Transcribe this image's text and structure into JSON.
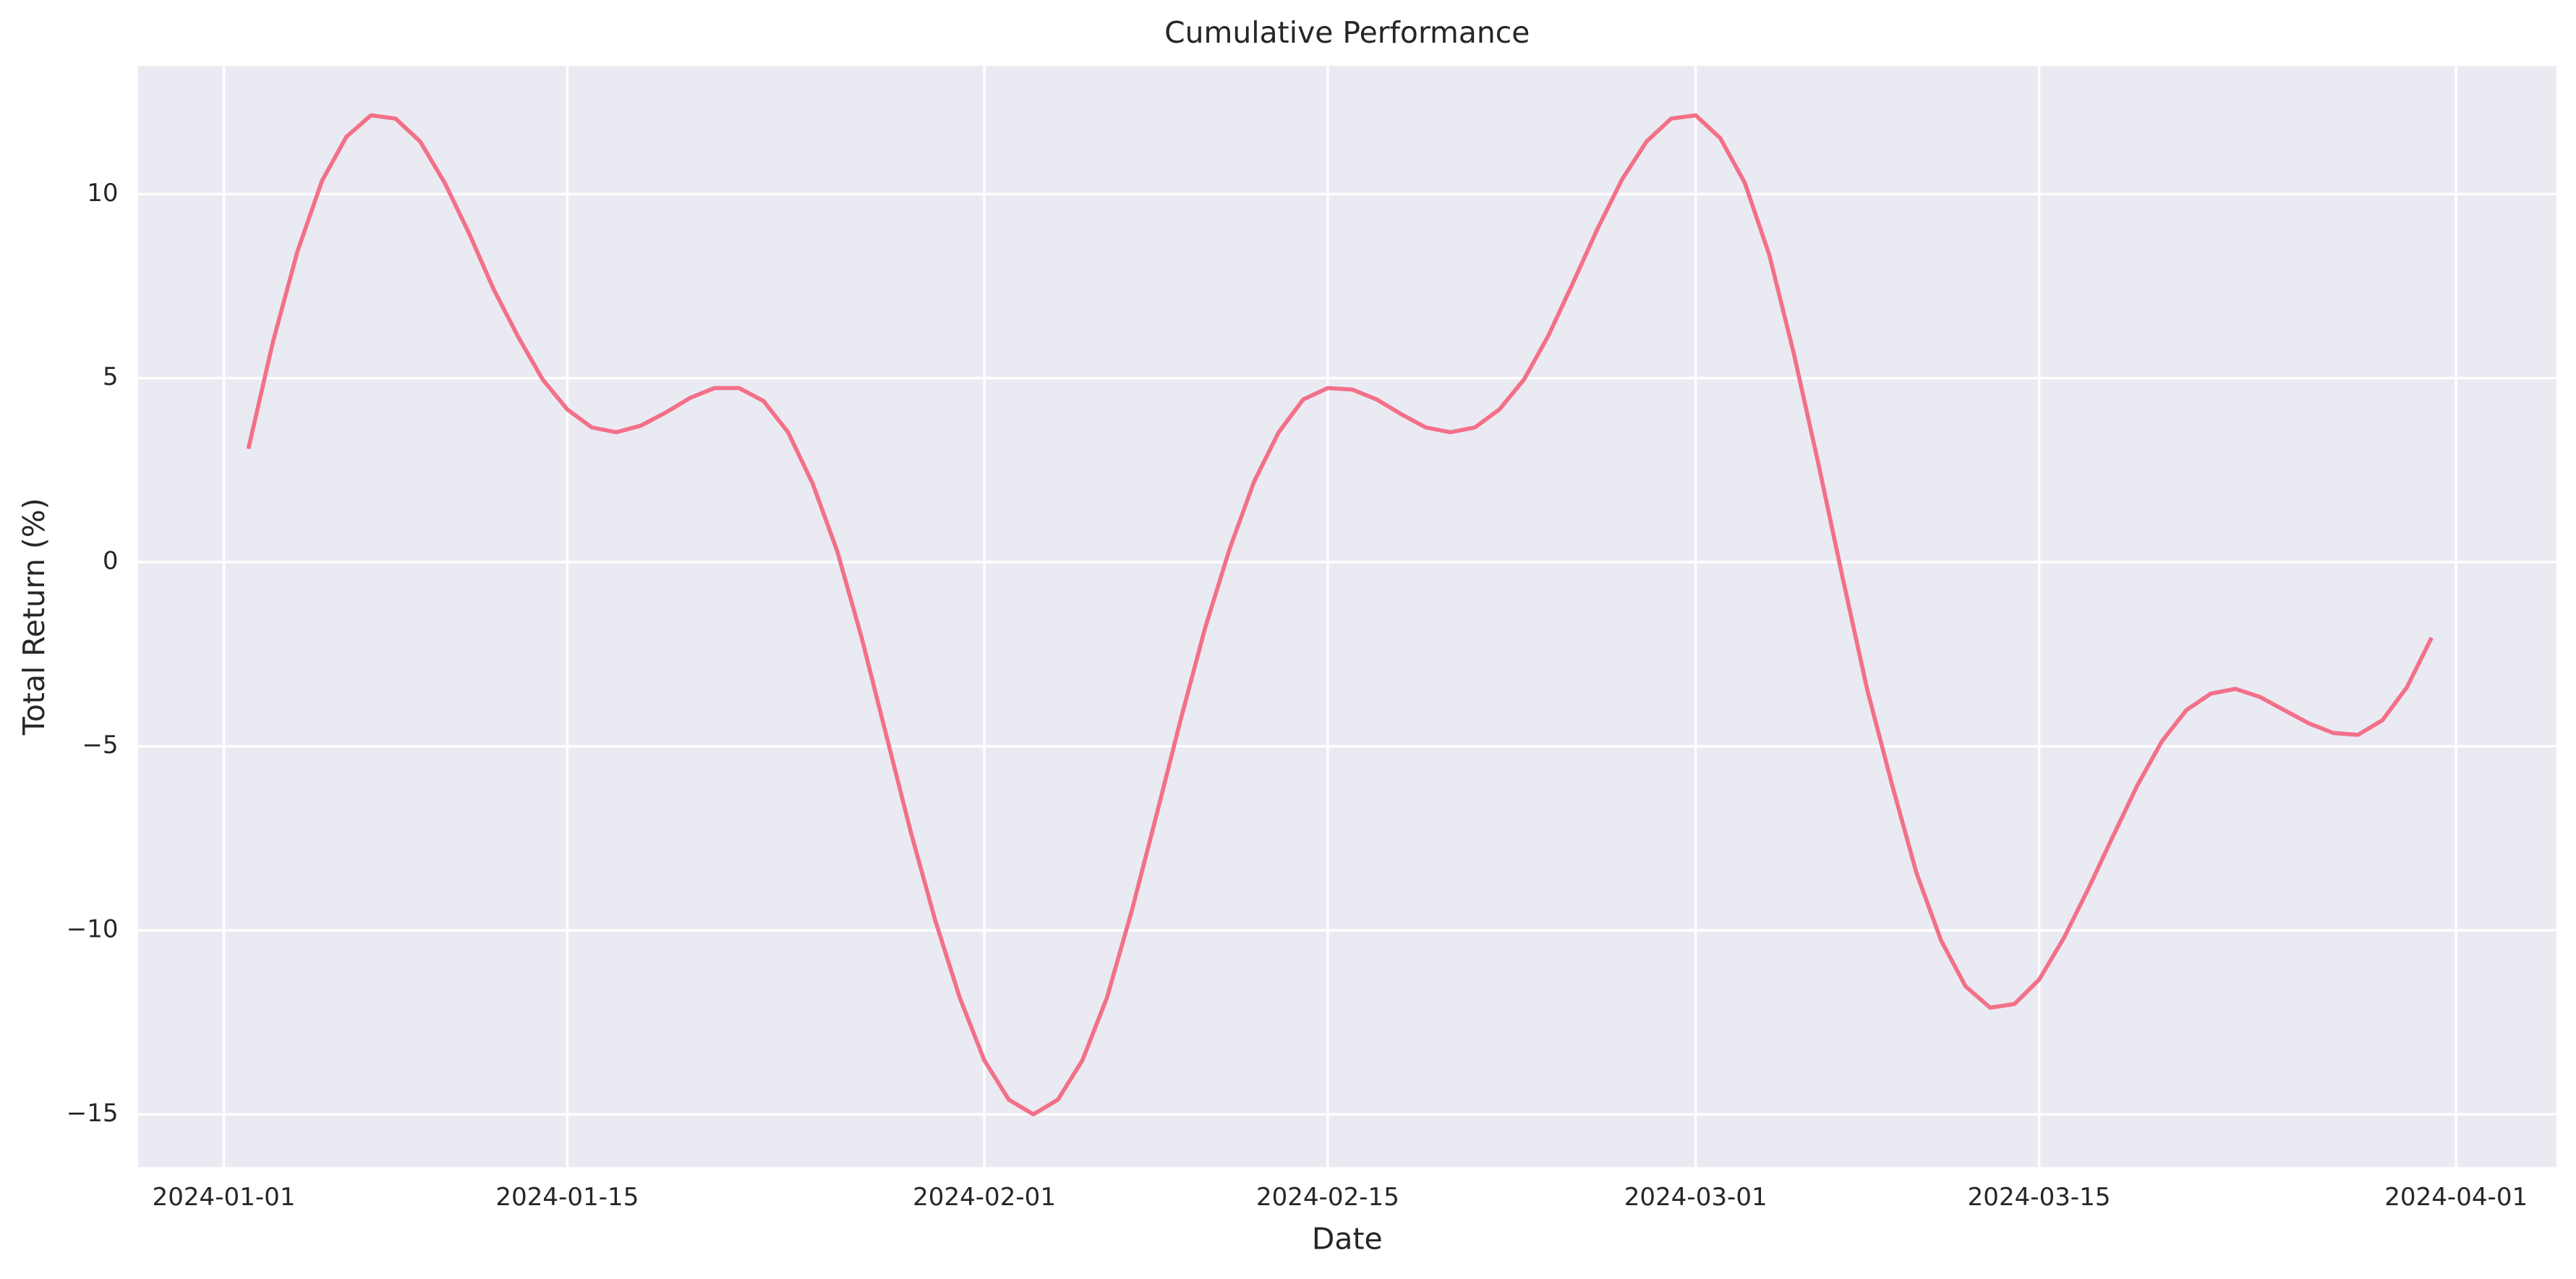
{
  "chart_data": {
    "type": "line",
    "title": "Cumulative Performance",
    "xlabel": "Date",
    "ylabel": "Total Return (%)",
    "x": [
      "2024-01-02",
      "2024-01-03",
      "2024-01-04",
      "2024-01-05",
      "2024-01-06",
      "2024-01-07",
      "2024-01-08",
      "2024-01-09",
      "2024-01-10",
      "2024-01-11",
      "2024-01-12",
      "2024-01-13",
      "2024-01-14",
      "2024-01-15",
      "2024-01-16",
      "2024-01-17",
      "2024-01-18",
      "2024-01-19",
      "2024-01-20",
      "2024-01-21",
      "2024-01-22",
      "2024-01-23",
      "2024-01-24",
      "2024-01-25",
      "2024-01-26",
      "2024-01-27",
      "2024-01-28",
      "2024-01-29",
      "2024-01-30",
      "2024-01-31",
      "2024-02-01",
      "2024-02-02",
      "2024-02-03",
      "2024-02-04",
      "2024-02-05",
      "2024-02-06",
      "2024-02-07",
      "2024-02-08",
      "2024-02-09",
      "2024-02-10",
      "2024-02-11",
      "2024-02-12",
      "2024-02-13",
      "2024-02-14",
      "2024-02-15",
      "2024-02-16",
      "2024-02-17",
      "2024-02-18",
      "2024-02-19",
      "2024-02-20",
      "2024-02-21",
      "2024-02-22",
      "2024-02-23",
      "2024-02-24",
      "2024-02-25",
      "2024-02-26",
      "2024-02-27",
      "2024-02-28",
      "2024-02-29",
      "2024-03-01",
      "2024-03-02",
      "2024-03-03",
      "2024-03-04",
      "2024-03-05",
      "2024-03-06",
      "2024-03-07",
      "2024-03-08",
      "2024-03-09",
      "2024-03-10",
      "2024-03-11",
      "2024-03-12",
      "2024-03-13",
      "2024-03-14",
      "2024-03-15",
      "2024-03-16",
      "2024-03-17",
      "2024-03-18",
      "2024-03-19",
      "2024-03-20",
      "2024-03-21",
      "2024-03-22",
      "2024-03-23",
      "2024-03-24",
      "2024-03-25",
      "2024-03-26",
      "2024-03-27",
      "2024-03-28",
      "2024-03-29",
      "2024-03-30",
      "2024-03-31"
    ],
    "values": [
      3.08,
      5.98,
      8.44,
      10.36,
      11.56,
      12.14,
      12.05,
      11.43,
      10.31,
      8.93,
      7.41,
      6.12,
      4.96,
      4.15,
      3.66,
      3.53,
      3.71,
      4.06,
      4.46,
      4.73,
      4.73,
      4.38,
      3.53,
      2.14,
      0.31,
      -2.05,
      -4.69,
      -7.32,
      -9.73,
      -11.83,
      -13.53,
      -14.6,
      -15.0,
      -14.6,
      -13.53,
      -11.83,
      -9.5,
      -6.92,
      -4.29,
      -1.79,
      0.36,
      2.19,
      3.53,
      4.42,
      4.73,
      4.69,
      4.42,
      4.02,
      3.66,
      3.53,
      3.66,
      4.15,
      4.96,
      6.16,
      7.59,
      9.06,
      10.4,
      11.43,
      12.05,
      12.14,
      11.52,
      10.31,
      8.35,
      5.67,
      2.68,
      -0.45,
      -3.48,
      -6.03,
      -8.44,
      -10.27,
      -11.52,
      -12.1,
      -12.0,
      -11.34,
      -10.22,
      -8.88,
      -7.46,
      -6.07,
      -4.87,
      -4.02,
      -3.57,
      -3.44,
      -3.66,
      -4.02,
      -4.38,
      -4.64,
      -4.69,
      -4.29,
      -3.39,
      -2.05
    ],
    "color": "#f37088",
    "xlim": [
      "2023-12-28T12:00",
      "2024-04-05T02:00"
    ],
    "xticks": [
      "2024-01-01",
      "2024-01-15",
      "2024-02-01",
      "2024-02-15",
      "2024-03-01",
      "2024-03-15",
      "2024-04-01"
    ],
    "ylim": [
      -16.43,
      13.48
    ],
    "yticks": [
      {
        "value": -15,
        "label": "−15"
      },
      {
        "value": -10,
        "label": "−10"
      },
      {
        "value": -5,
        "label": "−5"
      },
      0,
      5,
      10
    ],
    "grid": true
  }
}
